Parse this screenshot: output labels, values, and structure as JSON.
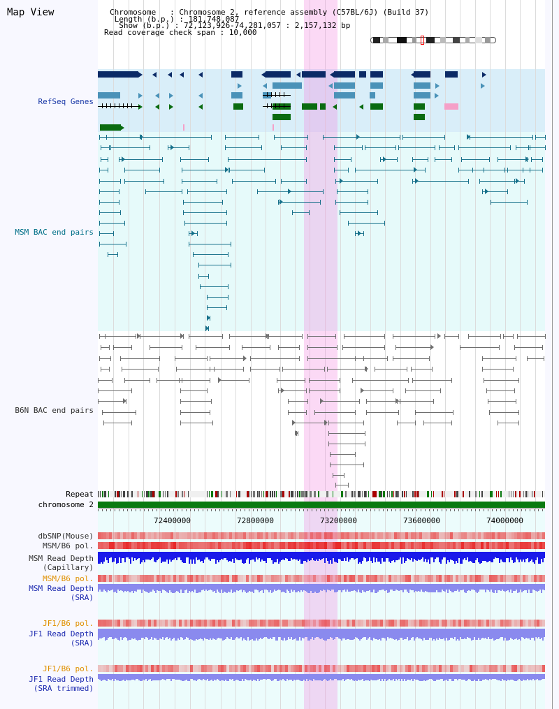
{
  "view": {
    "title": "Map View",
    "header_lines": [
      "Chromosome   : Chromosome 2, reference assembly (C57BL/6J) (Build 37)",
      " Length (b.p.) : 181,748,087",
      "  Show (b.p.) : 72,123,926-74,281,057 : 2,157,132 bp",
      "Read coverage check span : 10,000"
    ]
  },
  "tracks": {
    "refseq": "RefSeq Genes",
    "msm_bac": "MSM BAC end pairs",
    "b6n_bac": "B6N BAC end pairs",
    "repeat": "Repeat",
    "chrom": "chromosome 2",
    "dbsnp": "dbSNP(Mouse)",
    "msm_pol": "MSM/B6 pol.",
    "msm_depth_cap_1": "MSM Read Depth",
    "msm_depth_cap_2": "(Capillary)",
    "msm_pol2": "MSM/B6 pol.",
    "msm_depth_sra_1": "MSM Read Depth",
    "msm_depth_sra_2": "(SRA)",
    "jf1_pol": "JF1/B6 pol.",
    "jf1_depth_1": "JF1 Read Depth",
    "jf1_depth_2": "(SRA)",
    "jf1_pol2": "JF1/B6 pol.",
    "jf1_trim_1": "JF1 Read Depth",
    "jf1_trim_2": "(SRA trimmed)"
  },
  "axis": {
    "ticks": [
      "72400000",
      "72800000",
      "73200000",
      "73600000",
      "74000000"
    ]
  },
  "colors": {
    "refseq_bg": "#d7eefa",
    "bac_bg": "#e6fbfb",
    "navy_gene": "#0b2a66",
    "steel_gene": "#4a92b8",
    "green_gene": "#0a6b10",
    "msm_pair": "#16708a",
    "b6n_pair": "#6e6e6e",
    "highlight": "#f28ce2",
    "chrom_bar": "#0a7a10",
    "depth_blue": "#1a1aea",
    "depth_light": "#8a8aee"
  }
}
